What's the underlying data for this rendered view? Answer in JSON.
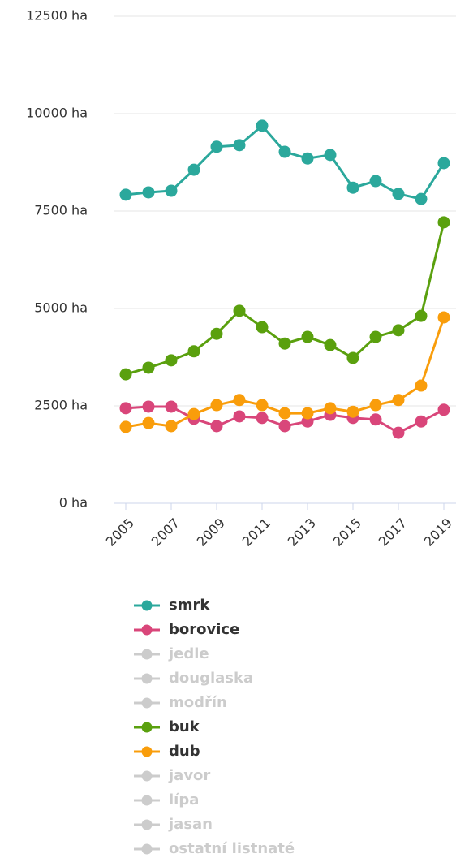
{
  "chart_data": {
    "type": "line",
    "x": [
      2005,
      2006,
      2007,
      2008,
      2009,
      2010,
      2011,
      2012,
      2013,
      2014,
      2015,
      2016,
      2017,
      2018,
      2019
    ],
    "xlim": [
      2005,
      2019
    ],
    "xticks": [
      2005,
      2007,
      2009,
      2011,
      2013,
      2015,
      2017,
      2019
    ],
    "ylim": [
      0,
      12500
    ],
    "yticks": [
      {
        "value": 0,
        "label": "0 ha"
      },
      {
        "value": 2500,
        "label": "2500 ha"
      },
      {
        "value": 5000,
        "label": "5000 ha"
      },
      {
        "value": 7500,
        "label": "7500 ha"
      },
      {
        "value": 10000,
        "label": "10000 ha"
      },
      {
        "value": 12500,
        "label": "12500 ha"
      }
    ],
    "grid": true,
    "series": [
      {
        "name": "smrk",
        "color": "#2ba89c",
        "visible": true,
        "values": [
          7920,
          7980,
          8020,
          8560,
          9150,
          9190,
          9690,
          9020,
          8850,
          8940,
          8100,
          8270,
          7940,
          7810,
          8730
        ]
      },
      {
        "name": "borovice",
        "color": "#d9467a",
        "visible": true,
        "values": [
          2440,
          2480,
          2480,
          2170,
          1980,
          2230,
          2190,
          1980,
          2100,
          2270,
          2190,
          2150,
          1810,
          2100,
          2400
        ]
      },
      {
        "name": "jedle",
        "color": "#cccccc",
        "visible": false
      },
      {
        "name": "douglaska",
        "color": "#cccccc",
        "visible": false
      },
      {
        "name": "modřín",
        "color": "#cccccc",
        "visible": false
      },
      {
        "name": "buk",
        "color": "#5aa00e",
        "visible": true,
        "values": [
          3310,
          3480,
          3670,
          3900,
          4350,
          4940,
          4520,
          4100,
          4270,
          4060,
          3730,
          4270,
          4440,
          4810,
          7210
        ]
      },
      {
        "name": "dub",
        "color": "#f99d0b",
        "visible": true,
        "values": [
          1960,
          2060,
          1980,
          2290,
          2520,
          2650,
          2520,
          2310,
          2310,
          2440,
          2350,
          2520,
          2650,
          3020,
          4770
        ]
      },
      {
        "name": "javor",
        "color": "#cccccc",
        "visible": false
      },
      {
        "name": "lípa",
        "color": "#cccccc",
        "visible": false
      },
      {
        "name": "jasan",
        "color": "#cccccc",
        "visible": false
      },
      {
        "name": "ostatní listnaté",
        "color": "#cccccc",
        "visible": false
      }
    ]
  }
}
